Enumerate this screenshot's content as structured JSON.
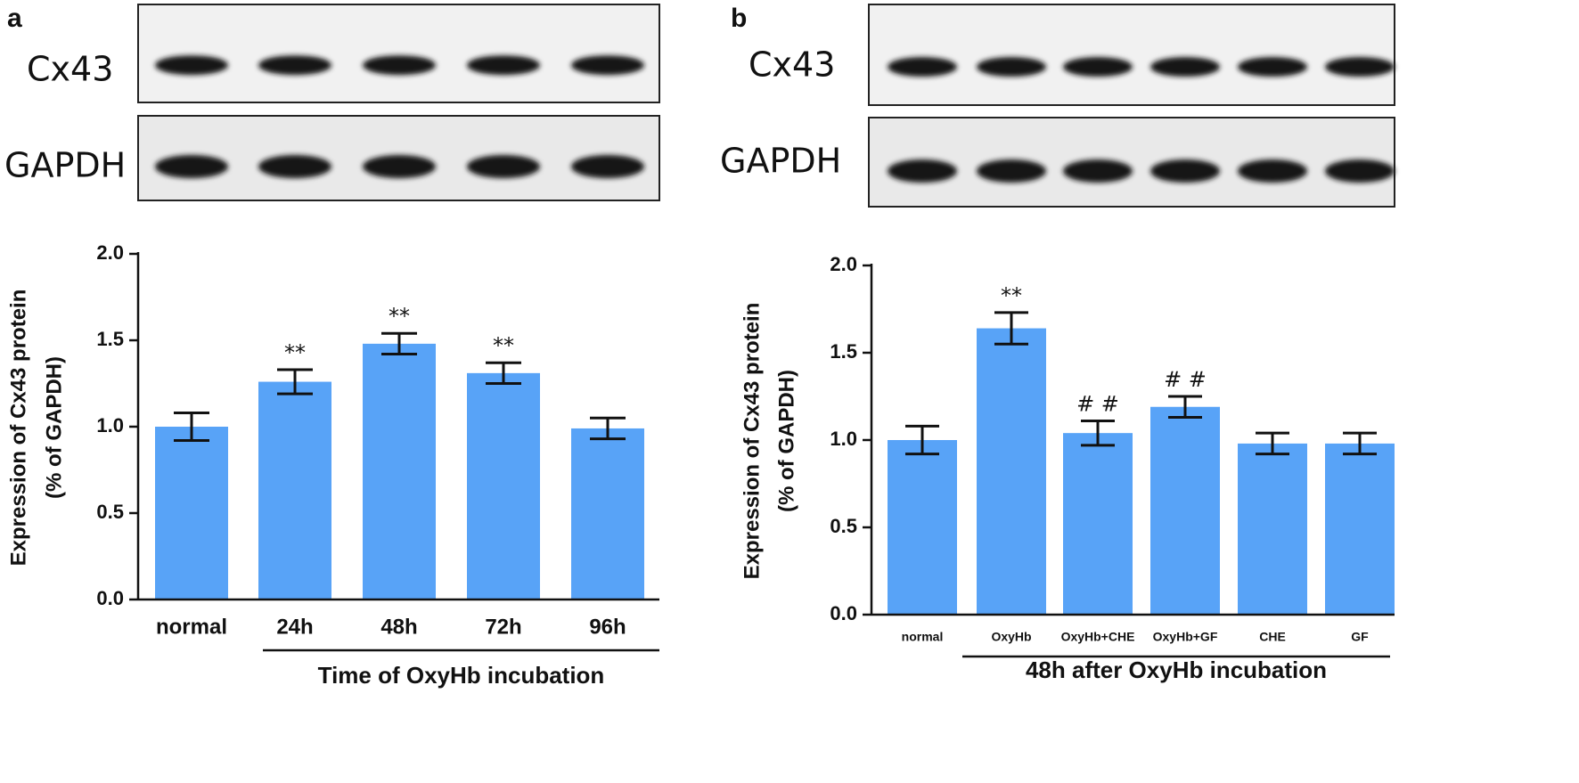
{
  "chart_data": [
    {
      "type": "bar",
      "panel_label": "a",
      "blot_labels": [
        "Cx43",
        "GAPDH"
      ],
      "ylabel": [
        "Expression of Cx43 protein",
        "(% of GAPDH)"
      ],
      "xlabel": "Time of OxyHb incubation",
      "categories": [
        "normal",
        "24h",
        "48h",
        "72h",
        "96h"
      ],
      "values": [
        1.0,
        1.26,
        1.48,
        1.31,
        0.99
      ],
      "errors": [
        0.08,
        0.07,
        0.06,
        0.06,
        0.06
      ],
      "annotations": [
        null,
        "**",
        "**",
        "**",
        null
      ],
      "color": "#58a3f7",
      "ylim": [
        0,
        2
      ],
      "yticks": [
        {
          "value": 0,
          "label": "0.0"
        },
        0.5,
        {
          "value": 1,
          "label": "1.0"
        },
        1.5,
        {
          "value": 2,
          "label": "2.0"
        }
      ]
    },
    {
      "type": "bar",
      "panel_label": "b",
      "blot_labels": [
        "Cx43",
        "GAPDH"
      ],
      "ylabel": [
        "Expression of Cx43 protein",
        "(% of GAPDH)"
      ],
      "xlabel": "48h after OxyHb incubation",
      "categories": [
        "normal",
        "OxyHb",
        "OxyHb+CHE",
        "OxyHb+GF",
        "CHE",
        "GF"
      ],
      "values": [
        1.0,
        1.64,
        1.04,
        1.19,
        0.98,
        0.98
      ],
      "errors": [
        0.08,
        0.09,
        0.07,
        0.06,
        0.06,
        0.06
      ],
      "annotations": [
        null,
        "**",
        "# #",
        "# #",
        null,
        null
      ],
      "color": "#58a3f7",
      "ylim": [
        0,
        2
      ],
      "yticks": [
        {
          "value": 0,
          "label": "0.0"
        },
        0.5,
        {
          "value": 1,
          "label": "1.0"
        },
        1.5,
        {
          "value": 2,
          "label": "2.0"
        }
      ]
    }
  ]
}
